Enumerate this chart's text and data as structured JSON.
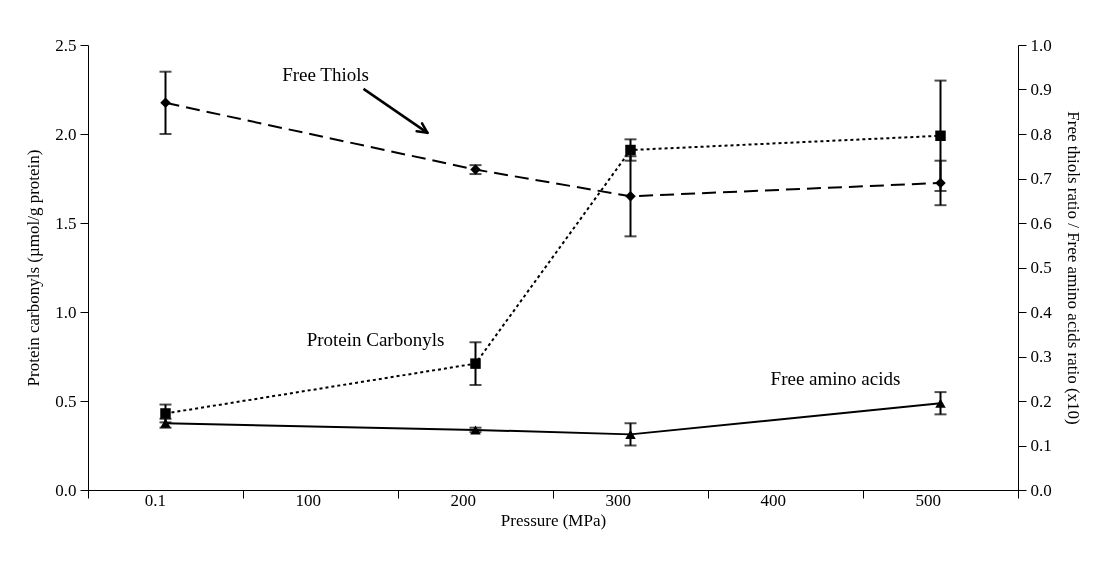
{
  "chart_data": {
    "type": "line",
    "xlabel": "Pressure (MPa)",
    "ylabel": "Protein carbonyls  (µmol/g protein)",
    "y2label": "Free thiols ratio / Free amino acids ratio (x10)",
    "categories": [
      "0.1",
      "100",
      "200",
      "300",
      "400",
      "500"
    ],
    "ylim": [
      0,
      2.5
    ],
    "yticks": [
      {
        "value": 0,
        "label": "0.0"
      },
      0.5,
      {
        "value": 1,
        "label": "1.0"
      },
      1.5,
      {
        "value": 2,
        "label": "2.0"
      },
      2.5
    ],
    "y2lim": [
      0,
      1.0
    ],
    "y2ticks": [
      {
        "value": 0,
        "label": "0.0"
      },
      0.1,
      0.2,
      0.3,
      0.4,
      0.5,
      0.6,
      0.7,
      0.8,
      0.9,
      {
        "value": 1,
        "label": "1.0"
      }
    ],
    "grid": false,
    "series": [
      {
        "name": "Free Thiols",
        "color": "#000000",
        "axis": "y2",
        "marker": "diamond",
        "line_style": "dashed",
        "values": [
          0.87,
          null,
          0.72,
          0.66,
          null,
          0.69
        ],
        "errors": [
          0.07,
          null,
          0.01,
          0.09,
          null,
          0.05
        ]
      },
      {
        "name": "Protein Carbonyls",
        "color": "#000000",
        "marker": "square",
        "line_style": "dotted",
        "values": [
          0.43,
          null,
          0.71,
          1.91,
          null,
          1.99
        ],
        "errors": [
          0.05,
          null,
          0.12,
          0.06,
          null,
          0.31
        ]
      },
      {
        "name": "Free amino acids",
        "color": "#000000",
        "axis": "y2",
        "marker": "triangle",
        "line_style": "solid",
        "values": [
          0.15,
          null,
          0.135,
          0.125,
          null,
          0.195
        ],
        "errors": [
          0.01,
          null,
          0.005,
          0.025,
          null,
          0.025
        ]
      }
    ]
  }
}
